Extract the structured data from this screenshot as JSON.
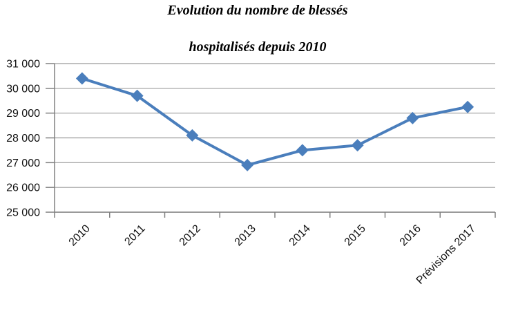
{
  "chart_data": {
    "type": "line",
    "title_lines": [
      "Evolution du nombre de blessés",
      "hospitalisés depuis 2010"
    ],
    "categories": [
      "2010",
      "2011",
      "2012",
      "2013",
      "2014",
      "2015",
      "2016",
      "Prévisions 2017"
    ],
    "values": [
      30400,
      29700,
      28100,
      26900,
      27500,
      27700,
      28800,
      29250
    ],
    "ylim": [
      25000,
      31000
    ],
    "ytick_step": 1000,
    "ytick_labels": [
      "25 000",
      "26 000",
      "27 000",
      "28 000",
      "29 000",
      "30 000",
      "31 000"
    ],
    "grid": "horizontal-major",
    "legend": "none",
    "marker": "diamond",
    "colors": {
      "line": "#4A7EBC",
      "marker": "#4A7EBC",
      "gridline": "#9B9B9B",
      "axis": "#808080",
      "text": "#111111",
      "title": "#000000",
      "background": "#FFFFFF"
    }
  }
}
